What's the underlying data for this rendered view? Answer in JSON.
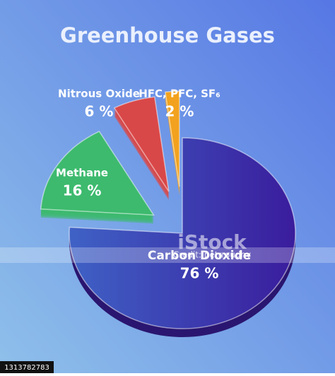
{
  "chart_data": {
    "type": "pie",
    "title": "Greenhouse Gases",
    "categories": [
      "Carbon Dioxide",
      "Methane",
      "Nitrous Oxide",
      "HFC, PFC, SF₆"
    ],
    "values": [
      76,
      16,
      6,
      2
    ],
    "value_labels": [
      "76 %",
      "16 %",
      "6 %",
      "2 %"
    ],
    "colors": [
      "#3b2aa8",
      "#3dba6e",
      "#d94848",
      "#f2a21e"
    ]
  },
  "watermark": {
    "brand": "iStock",
    "credit": "Credit: petrroudny",
    "id": "1313782783"
  }
}
